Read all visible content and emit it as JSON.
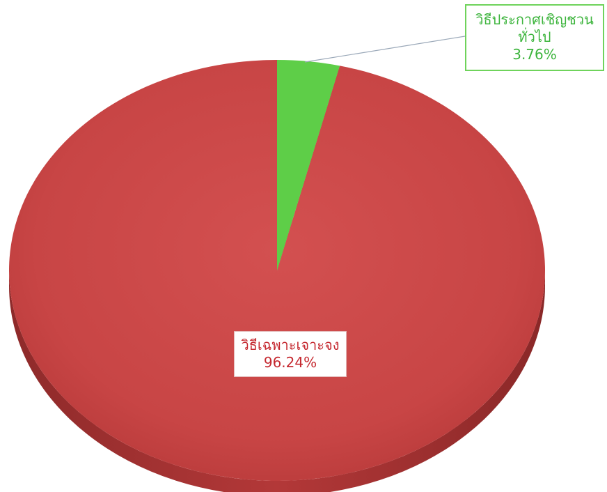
{
  "chart_data": {
    "type": "pie",
    "slices": [
      {
        "label_lines": [
          "วิธีประกาศเชิญชวน",
          "ทั่วไป"
        ],
        "value": 3.76,
        "value_label": "3.76%",
        "color": "#5ece48"
      },
      {
        "label_lines": [
          "วิธีเฉพาะเจาะจง"
        ],
        "value": 96.24,
        "value_label": "96.24%",
        "color": "#c94646"
      }
    ],
    "style": "3d"
  }
}
